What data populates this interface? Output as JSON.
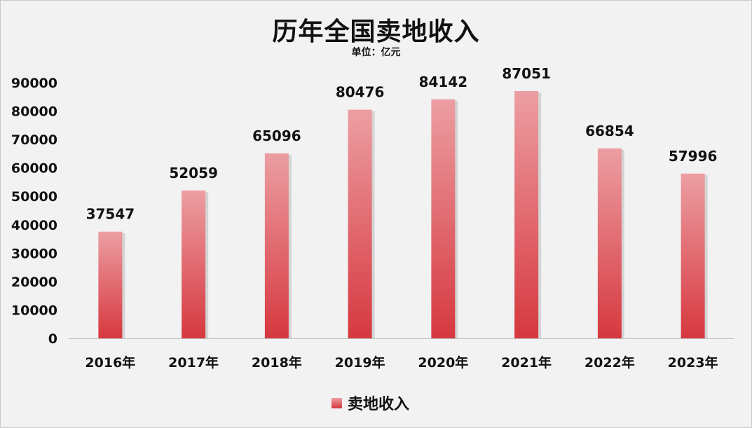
{
  "title": "历年全国卖地收入",
  "subtitle": "单位：亿元",
  "colors": {
    "bar_top": "#ec9ea2",
    "bar_bottom": "#d6383f",
    "background": "#f2f2f2"
  },
  "chart_data": {
    "type": "bar",
    "title": "历年全国卖地收入",
    "subtitle": "单位：亿元",
    "categories": [
      "2016年",
      "2017年",
      "2018年",
      "2019年",
      "2020年",
      "2021年",
      "2022年",
      "2023年"
    ],
    "series": [
      {
        "name": "卖地收入",
        "values": [
          37547,
          52059,
          65096,
          80476,
          84142,
          87051,
          66854,
          57996
        ]
      }
    ],
    "ylim": [
      0,
      90000
    ],
    "yticks": [
      0,
      10000,
      20000,
      30000,
      40000,
      50000,
      60000,
      70000,
      80000,
      90000
    ],
    "data_labels": true,
    "grid": false,
    "legend_position": "bottom"
  }
}
